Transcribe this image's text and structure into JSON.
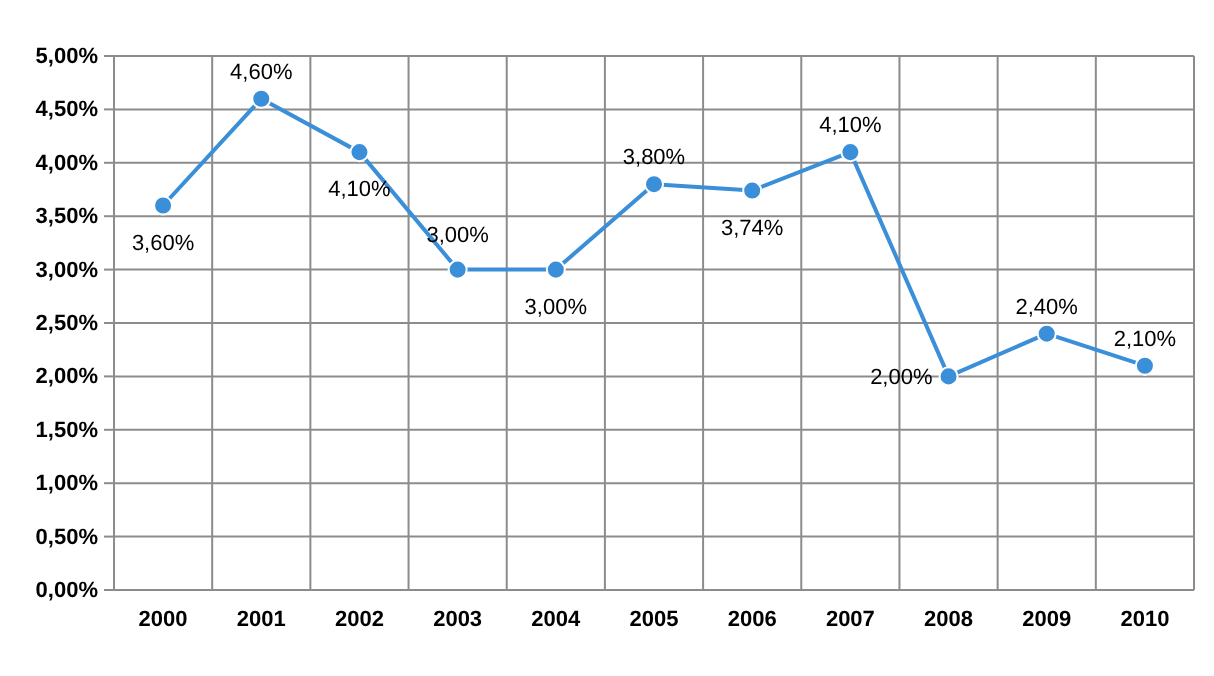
{
  "chart_data": {
    "type": "line",
    "categories": [
      "2000",
      "2001",
      "2002",
      "2003",
      "2004",
      "2005",
      "2006",
      "2007",
      "2008",
      "2009",
      "2010"
    ],
    "series": [
      {
        "color": "#3a8fd8",
        "values": [
          3.6,
          4.6,
          4.1,
          3.0,
          3.0,
          3.8,
          3.74,
          4.1,
          2.0,
          2.4,
          2.1
        ],
        "value_labels": [
          "3,60%",
          "4,60%",
          "4,10%",
          "3,00%",
          "3,00%",
          "3,80%",
          "3,74%",
          "4,10%",
          "2,00%",
          "2,40%",
          "2,10%"
        ]
      }
    ],
    "ylim": [
      0,
      5
    ],
    "yticks": [
      {
        "value": 0,
        "label": "0,00%"
      },
      {
        "value": 0.5,
        "label": "0,50%"
      },
      {
        "value": 1,
        "label": "1,00%"
      },
      {
        "value": 1.5,
        "label": "1,50%"
      },
      {
        "value": 2,
        "label": "2,00%"
      },
      {
        "value": 2.5,
        "label": "2,50%"
      },
      {
        "value": 3,
        "label": "3,00%"
      },
      {
        "value": 3.5,
        "label": "3,50%"
      },
      {
        "value": 4,
        "label": "4,00%"
      },
      {
        "value": 4.5,
        "label": "4,50%"
      },
      {
        "value": 5,
        "label": "5,00%"
      }
    ],
    "grid": true,
    "marker": "circle",
    "line_style": "solid"
  }
}
